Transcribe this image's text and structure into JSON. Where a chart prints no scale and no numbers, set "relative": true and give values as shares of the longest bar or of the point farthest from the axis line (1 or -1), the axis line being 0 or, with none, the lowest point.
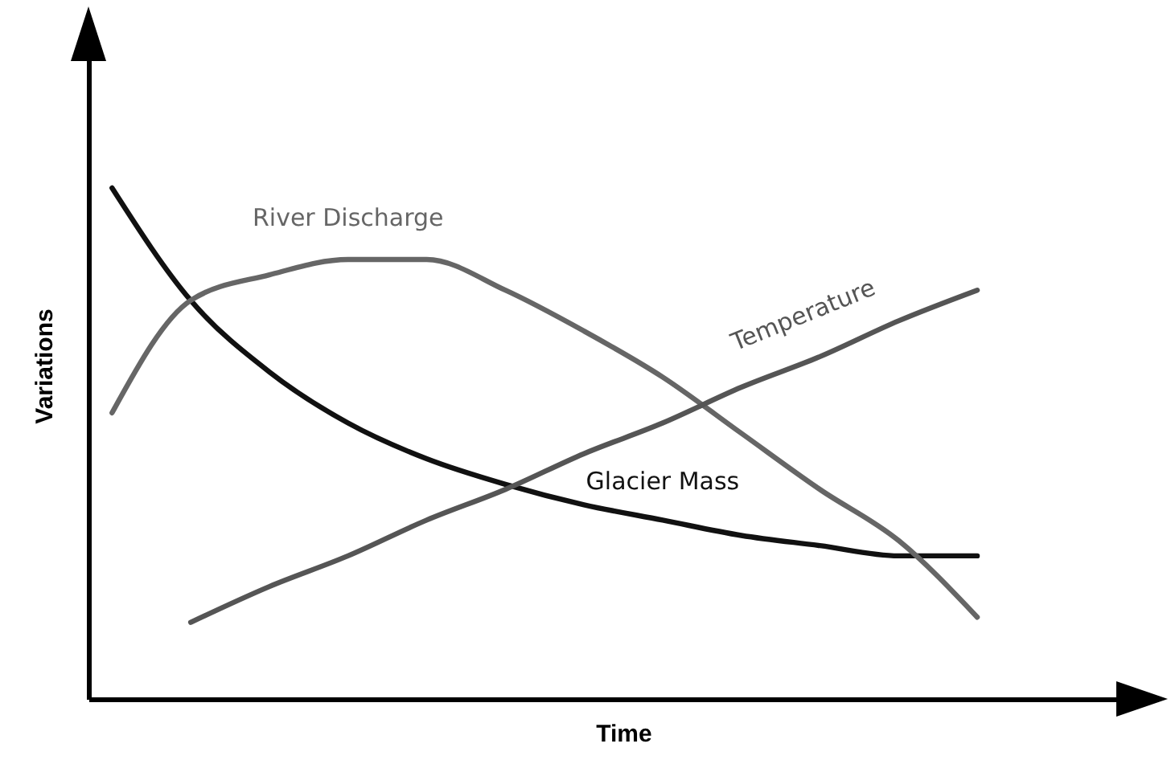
{
  "chart_data": {
    "type": "line",
    "xlabel": "Time",
    "ylabel": "Variations",
    "relative": true,
    "legend": false,
    "marker": "none",
    "line_style": "solid",
    "categories": [
      null,
      null,
      null,
      null,
      null,
      null,
      null,
      null,
      null,
      null,
      null,
      null
    ],
    "series": [
      {
        "name": "Glacier Mass",
        "color": "#111111",
        "values": [
          1,
          0.78,
          0.64,
          0.54,
          0.47,
          0.42,
          0.38,
          0.35,
          0.32,
          0.3,
          0.28,
          0.28
        ]
      },
      {
        "name": "River Discharge",
        "color": "#666666",
        "values": [
          0.56,
          0.78,
          0.83,
          0.86,
          0.86,
          0.8,
          0.72,
          0.63,
          0.52,
          0.41,
          0.31,
          0.16
        ]
      },
      {
        "name": "Temperature",
        "color": "#555555",
        "values": [
          null,
          0.15,
          0.22,
          0.28,
          0.35,
          0.41,
          0.48,
          0.54,
          0.61,
          0.67,
          0.74,
          0.8
        ]
      }
    ]
  }
}
